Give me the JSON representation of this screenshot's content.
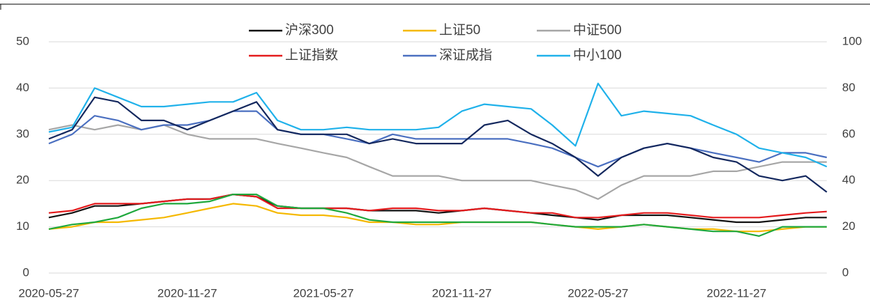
{
  "chart_data": {
    "type": "line",
    "x": [
      "2020-05-27",
      "2020-06-27",
      "2020-07-27",
      "2020-08-27",
      "2020-09-27",
      "2020-10-27",
      "2020-11-27",
      "2020-12-27",
      "2021-01-27",
      "2021-02-27",
      "2021-03-27",
      "2021-04-27",
      "2021-05-27",
      "2021-06-27",
      "2021-07-27",
      "2021-08-27",
      "2021-09-27",
      "2021-10-27",
      "2021-11-27",
      "2021-12-27",
      "2022-01-27",
      "2022-02-27",
      "2022-03-27",
      "2022-04-27",
      "2022-05-27",
      "2022-06-27",
      "2022-07-27",
      "2022-08-27",
      "2022-09-27",
      "2022-10-27",
      "2022-11-27",
      "2022-12-27",
      "2023-01-27",
      "2023-02-27",
      "2023-03-27"
    ],
    "xlim": [
      "2020-05-27",
      "2023-03-27"
    ],
    "xticks": [
      "2020-05-27",
      "2020-11-27",
      "2021-05-27",
      "2021-11-27",
      "2022-05-27",
      "2022-11-27"
    ],
    "ylim": [
      0,
      50
    ],
    "yticks": [
      0,
      10,
      20,
      30,
      40,
      50
    ],
    "y2lim": [
      0,
      100
    ],
    "y2ticks": [
      0,
      20,
      40,
      60,
      80,
      100
    ],
    "grid": true,
    "series": [
      {
        "name": "沪深300",
        "color": "#111111",
        "values": [
          12,
          13,
          14.5,
          14.5,
          15,
          15.5,
          16,
          16,
          17,
          16.5,
          14.5,
          14,
          14,
          14,
          13.5,
          13.5,
          13.5,
          13,
          13.5,
          14,
          13.5,
          13,
          12.5,
          12,
          11.5,
          12.5,
          12.5,
          12.5,
          12,
          11.5,
          11,
          11,
          11.5,
          12,
          12
        ]
      },
      {
        "name": "上证50",
        "color": "#f5b800",
        "values": [
          9.5,
          10,
          11,
          11,
          11.5,
          12,
          13,
          14,
          15,
          14.5,
          13,
          12.5,
          12.5,
          12,
          11,
          11,
          10.5,
          10.5,
          11,
          11,
          11,
          11,
          10.5,
          10,
          9.5,
          10,
          10.5,
          10,
          9.5,
          9.5,
          9,
          9,
          9.5,
          10,
          10
        ]
      },
      {
        "name": "中证500",
        "color": "#a6a6a6",
        "values": [
          31,
          32,
          31,
          32,
          31,
          32,
          30,
          29,
          29,
          29,
          28,
          27,
          26,
          25,
          23,
          21,
          21,
          21,
          20,
          20,
          20,
          20,
          19,
          18,
          16,
          19,
          21,
          21,
          21,
          22,
          22,
          23,
          24,
          24,
          24
        ]
      },
      {
        "name": "上证指数",
        "color": "#e41a1c",
        "values": [
          13,
          13.5,
          15,
          15,
          15,
          15.5,
          16,
          16,
          17,
          16.5,
          14,
          14,
          14,
          14,
          13.5,
          14,
          14,
          13.5,
          13.5,
          14,
          13.5,
          13,
          13,
          12,
          12,
          12.5,
          13,
          13,
          12.5,
          12,
          12,
          12,
          12.5,
          13,
          13.3
        ]
      },
      {
        "name": "深证成指",
        "color": "#4a6fc0",
        "values": [
          28,
          30,
          34,
          33,
          31,
          32,
          32,
          33,
          35,
          35,
          31,
          30,
          30,
          29,
          28,
          30,
          29,
          29,
          29,
          29,
          29,
          28,
          27,
          25,
          23,
          25,
          27,
          28,
          27,
          26,
          25,
          24,
          26,
          26,
          25
        ]
      },
      {
        "name": "中小100",
        "color": "#1fb1ea",
        "axis": "y2",
        "values": [
          61,
          63,
          80,
          76,
          72,
          72,
          73,
          74,
          74,
          78,
          66,
          62,
          62,
          63,
          62,
          62,
          62,
          63,
          70,
          73,
          72,
          71,
          64,
          55,
          82,
          68,
          70,
          69,
          68,
          64,
          60,
          54,
          52,
          50,
          46
        ]
      },
      {
        "color": "#14285e",
        "values": [
          29,
          31,
          38,
          37,
          33,
          33,
          31,
          33,
          35,
          37,
          31,
          30,
          30,
          30,
          28,
          29,
          28,
          28,
          28,
          32,
          33,
          30,
          28,
          25,
          21,
          25,
          27,
          28,
          27,
          25,
          24,
          21,
          20,
          21,
          17.5
        ]
      },
      {
        "color": "#1ea83c",
        "values": [
          9.5,
          10.5,
          11,
          12,
          14,
          15,
          15,
          15.5,
          17,
          17,
          14.5,
          14,
          14,
          13,
          11.5,
          11,
          11,
          11,
          11,
          11,
          11,
          11,
          10.5,
          10,
          10,
          10,
          10.5,
          10,
          9.5,
          9,
          9,
          8,
          10,
          10,
          10
        ]
      }
    ]
  }
}
